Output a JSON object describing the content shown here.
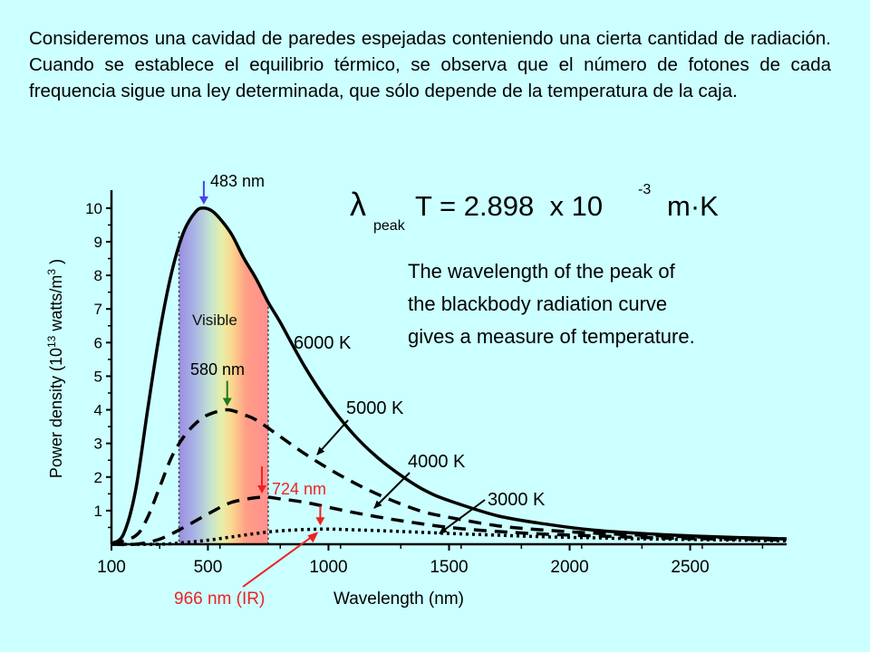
{
  "intro_text": "Consideremos una cavidad de paredes espejadas conteniendo una cierta cantidad de radiación. Cuando se establece el equilibrio térmico, se observa que el número de fotones de cada frequencia sigue una ley determinada, que sólo depende de la temperatura de la caja.",
  "chart_data": {
    "type": "line",
    "title": "",
    "xlabel": "Wavelength (nm)",
    "ylabel": "Power density (10¹³ watts/m³ )",
    "ylabel_parts": {
      "pre": "Power density (10",
      "exp1": "13",
      "mid": " watts/m",
      "exp2": "3",
      "post": " )"
    },
    "xlim": [
      100,
      2900
    ],
    "ylim": [
      0,
      10.4
    ],
    "x_ticks": [
      100,
      500,
      1000,
      1500,
      2000,
      2500
    ],
    "y_ticks": [
      1,
      2,
      3,
      4,
      5,
      6,
      7,
      8,
      9,
      10
    ],
    "grid": false,
    "visible_band": {
      "label": "Visible",
      "range_nm": [
        380,
        750
      ]
    },
    "series": [
      {
        "name": "6000 K",
        "style": "solid",
        "x": [
          100,
          150,
          200,
          250,
          300,
          350,
          400,
          450,
          483,
          520,
          560,
          600,
          650,
          700,
          750,
          800,
          900,
          1000,
          1100,
          1200,
          1300,
          1400,
          1500,
          1700,
          1900,
          2100,
          2300,
          2500,
          2700,
          2900
        ],
        "y": [
          0.02,
          0.3,
          1.6,
          4.0,
          6.3,
          8.1,
          9.3,
          9.9,
          10.0,
          9.9,
          9.6,
          9.2,
          8.5,
          7.9,
          7.2,
          6.6,
          5.3,
          4.2,
          3.3,
          2.6,
          2.05,
          1.6,
          1.3,
          0.85,
          0.6,
          0.42,
          0.32,
          0.25,
          0.2,
          0.16
        ]
      },
      {
        "name": "5000 K",
        "style": "dashed",
        "x": [
          100,
          200,
          250,
          300,
          350,
          400,
          450,
          500,
          580,
          650,
          700,
          800,
          900,
          1000,
          1100,
          1200,
          1300,
          1400,
          1500,
          1700,
          1900,
          2100,
          2300,
          2500,
          2700,
          2900
        ],
        "y": [
          0.0,
          0.25,
          0.8,
          1.7,
          2.6,
          3.2,
          3.6,
          3.85,
          4.0,
          3.85,
          3.7,
          3.2,
          2.7,
          2.25,
          1.85,
          1.5,
          1.2,
          0.95,
          0.8,
          0.55,
          0.42,
          0.33,
          0.27,
          0.22,
          0.19,
          0.16
        ]
      },
      {
        "name": "4000 K",
        "style": "dashed",
        "x": [
          100,
          200,
          300,
          400,
          500,
          600,
          724,
          800,
          900,
          1000,
          1100,
          1200,
          1300,
          1500,
          1700,
          1900,
          2100,
          2300,
          2500,
          2700,
          2900
        ],
        "y": [
          0.0,
          0.0,
          0.15,
          0.5,
          0.9,
          1.25,
          1.4,
          1.35,
          1.25,
          1.1,
          0.95,
          0.82,
          0.7,
          0.5,
          0.38,
          0.3,
          0.25,
          0.2,
          0.17,
          0.15,
          0.13
        ]
      },
      {
        "name": "3000 K",
        "style": "dotted",
        "x": [
          100,
          300,
          400,
          500,
          600,
          700,
          800,
          966,
          1100,
          1300,
          1500,
          1700,
          1900,
          2100,
          2300,
          2500,
          2700,
          2900
        ],
        "y": [
          0.0,
          0.0,
          0.05,
          0.12,
          0.22,
          0.32,
          0.4,
          0.45,
          0.43,
          0.38,
          0.32,
          0.27,
          0.22,
          0.19,
          0.16,
          0.14,
          0.12,
          0.1
        ]
      }
    ],
    "peak_markers": [
      {
        "label": "483 nm",
        "x": 483,
        "color": "#4444ee"
      },
      {
        "label": "580 nm",
        "x": 580,
        "color": "#227722"
      },
      {
        "label": "724 nm",
        "x": 724,
        "color": "#ee2222"
      },
      {
        "label": "966 nm (IR)",
        "x": 966,
        "color": "#ee2222"
      }
    ],
    "annotations": {
      "formula_lambda": "λ",
      "formula_sub": "peak",
      "formula_main": "T = 2.898  x 10",
      "formula_exp": "-3",
      "formula_unit": "m·K",
      "explanation_lines": [
        "The wavelength of the peak of",
        "the blackbody radiation curve",
        "gives a measure of temperature."
      ]
    }
  }
}
